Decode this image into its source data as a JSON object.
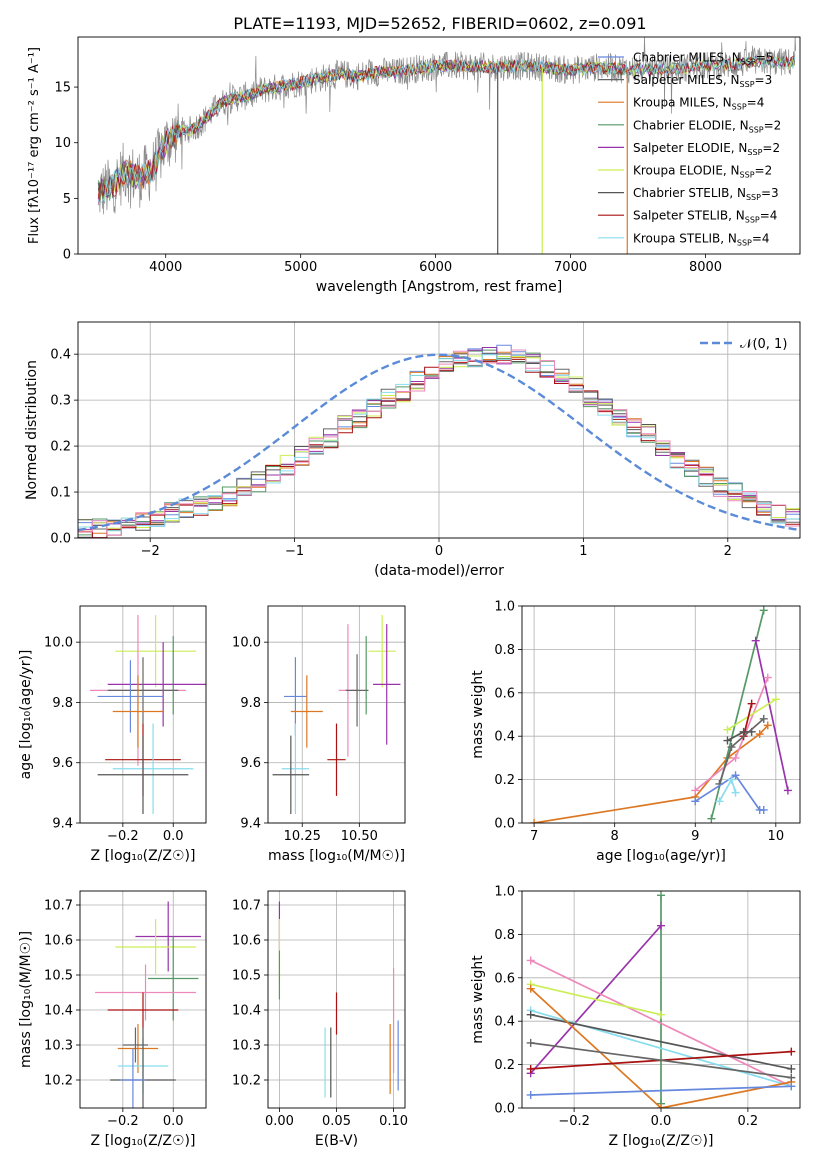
{
  "colors": {
    "Chabrier MILES": "#6688dd",
    "Salpeter MILES": "#666666",
    "Kroupa MILES": "#dd7722",
    "Chabrier ELODIE": "#559966",
    "Salpeter ELODIE": "#9933aa",
    "Kroupa ELODIE": "#ccee55",
    "Chabrier STELIB": "#555555",
    "Salpeter STELIB": "#aa1111",
    "Kroupa STELIB": "#88ddee",
    "pink": "#ee88bb",
    "gauss": "#5b8bd8",
    "grid": "#b0b0b0"
  },
  "chart_data": [
    {
      "id": "spectrum",
      "type": "line",
      "title": "PLATE=1193, MJD=52652, FIBERID=0602, z=0.091",
      "xlabel": "wavelength [Angstrom, rest frame]",
      "ylabel": "Flux [fλ10⁻¹⁷ erg cm⁻² s⁻¹ A⁻¹]",
      "xlim": [
        3350,
        8700
      ],
      "ylim": [
        0,
        19.5
      ],
      "xticks": [
        "4000",
        "5000",
        "6000",
        "7000",
        "8000"
      ],
      "yticks": [
        "0",
        "5",
        "10",
        "15"
      ],
      "grid": false,
      "legend": "top-right",
      "observed_anchor_points": {
        "x": [
          3500,
          3600,
          3700,
          3800,
          3900,
          4000,
          4100,
          4200,
          4300,
          4400,
          4500,
          4600,
          4700,
          4800,
          4900,
          5000,
          5100,
          5200,
          5300,
          5400,
          5500,
          5600,
          5700,
          5800,
          5900,
          6000,
          6200,
          6400,
          6600,
          6800,
          7000,
          7200,
          7400,
          7600,
          7800,
          8000,
          8200,
          8400,
          8670
        ],
        "y": [
          5.5,
          6.0,
          7.5,
          6.8,
          7.5,
          10.0,
          11.0,
          11.2,
          12.2,
          13.5,
          14.0,
          14.2,
          14.7,
          14.9,
          15.2,
          15.4,
          15.7,
          15.9,
          16.2,
          16.0,
          16.2,
          16.4,
          16.3,
          16.6,
          16.7,
          16.9,
          16.9,
          16.8,
          16.9,
          16.8,
          16.5,
          16.8,
          16.6,
          16.6,
          16.7,
          16.9,
          17.0,
          17.3,
          17.2
        ]
      },
      "series": [
        {
          "name": "Chabrier MILES, N_SSP=5",
          "label": "Chabrier MILES, N",
          "sub": "SSP",
          "n": "=5"
        },
        {
          "name": "Salpeter MILES, N_SSP=3",
          "label": "Salpeter MILES, N",
          "sub": "SSP",
          "n": "=3"
        },
        {
          "name": "Kroupa MILES, N_SSP=4",
          "label": "Kroupa MILES, N",
          "sub": "SSP",
          "n": "=4"
        },
        {
          "name": "Chabrier ELODIE, N_SSP=2",
          "label": "Chabrier ELODIE, N",
          "sub": "SSP",
          "n": "=2"
        },
        {
          "name": "Salpeter ELODIE, N_SSP=2",
          "label": "Salpeter ELODIE, N",
          "sub": "SSP",
          "n": "=2"
        },
        {
          "name": "Kroupa ELODIE, N_SSP=2",
          "label": "Kroupa ELODIE, N",
          "sub": "SSP",
          "n": "=2"
        },
        {
          "name": "Chabrier STELIB, N_SSP=3",
          "label": "Chabrier STELIB, N",
          "sub": "SSP",
          "n": "=3"
        },
        {
          "name": "Salpeter STELIB, N_SSP=4",
          "label": "Salpeter STELIB, N",
          "sub": "SSP",
          "n": "=4"
        },
        {
          "name": "Kroupa STELIB, N_SSP=4",
          "label": "Kroupa STELIB, N",
          "sub": "SSP",
          "n": "=4"
        }
      ],
      "spikes": [
        {
          "x": 6460,
          "model": "Chabrier STELIB"
        },
        {
          "x": 6790,
          "model": "Kroupa ELODIE"
        },
        {
          "x": 7420,
          "model": "Kroupa MILES"
        }
      ]
    },
    {
      "id": "residuals",
      "type": "step",
      "xlabel": "(data-model)/error",
      "ylabel": "Normed distribution",
      "xlim": [
        -2.5,
        2.5
      ],
      "ylim": [
        0,
        0.47
      ],
      "xticks": [
        "−2",
        "−1",
        "0",
        "1",
        "2"
      ],
      "yticks": [
        "0.0",
        "0.1",
        "0.2",
        "0.3",
        "0.4"
      ],
      "grid": true,
      "legend": "top-right",
      "legend_label": "𝒩(0, 1)",
      "bin_width": 0.1,
      "bin_start": -2.5,
      "base_histogram": [
        0.018,
        0.022,
        0.027,
        0.032,
        0.038,
        0.046,
        0.055,
        0.063,
        0.072,
        0.082,
        0.092,
        0.108,
        0.122,
        0.138,
        0.158,
        0.178,
        0.198,
        0.218,
        0.248,
        0.262,
        0.282,
        0.302,
        0.318,
        0.342,
        0.362,
        0.382,
        0.388,
        0.392,
        0.402,
        0.398,
        0.392,
        0.382,
        0.368,
        0.352,
        0.332,
        0.302,
        0.282,
        0.262,
        0.242,
        0.228,
        0.198,
        0.172,
        0.152,
        0.132,
        0.112,
        0.098,
        0.082,
        0.068,
        0.052,
        0.042
      ],
      "gaussian": {
        "mean": 0,
        "sigma": 1
      }
    },
    {
      "id": "age_vs_Z",
      "type": "errorbar",
      "xlabel": "Z [log₁₀(Z/Z☉)]",
      "ylabel": "age  [log₁₀(age/yr)]",
      "xlim": [
        -0.37,
        0.13
      ],
      "ylim": [
        9.4,
        10.12
      ],
      "xticks": [
        "−0.2",
        "0.0"
      ],
      "yticks": [
        "9.4",
        "9.6",
        "9.8",
        "10.0"
      ],
      "grid": true,
      "points": [
        {
          "model": "Kroupa ELODIE",
          "x": -0.07,
          "y": 9.97,
          "xerr": 0.16,
          "yerr": 0.12
        },
        {
          "model": "Chabrier ELODIE",
          "x": 0.0,
          "y": 9.89,
          "xerr": 0.0,
          "yerr": 0.13
        },
        {
          "model": "Salpeter ELODIE",
          "x": -0.04,
          "y": 9.86,
          "xerr": 0.22,
          "yerr": 0.14
        },
        {
          "model": "pink",
          "x": -0.14,
          "y": 9.84,
          "xerr": 0.19,
          "yerr": 0.25
        },
        {
          "model": "Salpeter MILES",
          "x": -0.12,
          "y": 9.84,
          "xerr": 0.14,
          "yerr": 0.11
        },
        {
          "model": "Chabrier MILES",
          "x": -0.17,
          "y": 9.82,
          "xerr": 0.13,
          "yerr": 0.12
        },
        {
          "model": "Kroupa MILES",
          "x": -0.14,
          "y": 9.77,
          "xerr": 0.1,
          "yerr": 0.12
        },
        {
          "model": "Salpeter STELIB",
          "x": -0.12,
          "y": 9.61,
          "xerr": 0.15,
          "yerr": 0.12
        },
        {
          "model": "Kroupa STELIB",
          "x": -0.08,
          "y": 9.58,
          "xerr": 0.16,
          "yerr": 0.15
        },
        {
          "model": "Chabrier STELIB",
          "x": -0.12,
          "y": 9.56,
          "xerr": 0.18,
          "yerr": 0.13
        }
      ]
    },
    {
      "id": "age_vs_mass",
      "type": "errorbar",
      "xlabel": "mass [log₁₀(M/M☉)]",
      "ylabel": "",
      "xlim": [
        10.1,
        10.7
      ],
      "ylim": [
        9.4,
        10.12
      ],
      "xticks": [
        "10.25",
        "10.50"
      ],
      "yticks": [
        "9.4",
        "9.6",
        "9.8",
        "10.0"
      ],
      "grid": true,
      "points": [
        {
          "model": "Kroupa ELODIE",
          "x": 10.6,
          "y": 9.97,
          "xerr": 0.06,
          "yerr": 0.12
        },
        {
          "model": "Chabrier ELODIE",
          "x": 10.53,
          "y": 9.89,
          "xerr": 0.0,
          "yerr": 0.13
        },
        {
          "model": "Salpeter ELODIE",
          "x": 10.62,
          "y": 9.86,
          "xerr": 0.06,
          "yerr": 0.2
        },
        {
          "model": "pink",
          "x": 10.45,
          "y": 9.84,
          "xerr": 0.04,
          "yerr": 0.22
        },
        {
          "model": "Salpeter MILES",
          "x": 10.49,
          "y": 9.84,
          "xerr": 0.05,
          "yerr": 0.12
        },
        {
          "model": "Chabrier MILES",
          "x": 10.22,
          "y": 9.82,
          "xerr": 0.05,
          "yerr": 0.13
        },
        {
          "model": "Kroupa MILES",
          "x": 10.27,
          "y": 9.77,
          "xerr": 0.07,
          "yerr": 0.12
        },
        {
          "model": "Salpeter STELIB",
          "x": 10.4,
          "y": 9.61,
          "xerr": 0.04,
          "yerr": 0.12
        },
        {
          "model": "Kroupa STELIB",
          "x": 10.22,
          "y": 9.58,
          "xerr": 0.06,
          "yerr": 0.15
        },
        {
          "model": "Chabrier STELIB",
          "x": 10.2,
          "y": 9.56,
          "xerr": 0.08,
          "yerr": 0.13
        }
      ]
    },
    {
      "id": "weight_vs_age",
      "type": "line",
      "xlabel": "age  [log₁₀(age/yr)]",
      "ylabel": "mass weight",
      "xlim": [
        6.85,
        10.3
      ],
      "ylim": [
        0,
        1
      ],
      "xticks": [
        "7",
        "8",
        "9",
        "10"
      ],
      "yticks": [
        "0.0",
        "0.2",
        "0.4",
        "0.6",
        "0.8",
        "1.0"
      ],
      "grid": true,
      "series": [
        {
          "model": "Kroupa MILES",
          "x": [
            7.0,
            9.0,
            9.4,
            9.8,
            9.9
          ],
          "y": [
            0.0,
            0.12,
            0.3,
            0.41,
            0.45
          ]
        },
        {
          "model": "Chabrier ELODIE",
          "x": [
            9.2,
            9.85
          ],
          "y": [
            0.02,
            0.98
          ]
        },
        {
          "model": "Salpeter ELODIE",
          "x": [
            9.75,
            10.15
          ],
          "y": [
            0.84,
            0.15
          ]
        },
        {
          "model": "pink",
          "x": [
            9.0,
            9.5,
            9.9
          ],
          "y": [
            0.15,
            0.3,
            0.67
          ]
        },
        {
          "model": "Kroupa ELODIE",
          "x": [
            9.4,
            10.0
          ],
          "y": [
            0.43,
            0.57
          ]
        },
        {
          "model": "Salpeter STELIB",
          "x": [
            9.6,
            9.7
          ],
          "y": [
            0.4,
            0.55
          ]
        },
        {
          "model": "Chabrier STELIB",
          "x": [
            9.4,
            9.6,
            9.7
          ],
          "y": [
            0.38,
            0.42,
            0.42
          ]
        },
        {
          "model": "Salpeter MILES",
          "x": [
            9.3,
            9.45,
            9.85
          ],
          "y": [
            0.18,
            0.35,
            0.48
          ]
        },
        {
          "model": "Chabrier MILES",
          "x": [
            9.0,
            9.5,
            9.8,
            9.85
          ],
          "y": [
            0.1,
            0.22,
            0.06,
            0.06
          ]
        },
        {
          "model": "Kroupa STELIB",
          "x": [
            9.3,
            9.45,
            9.5
          ],
          "y": [
            0.1,
            0.2,
            0.14
          ]
        }
      ]
    },
    {
      "id": "mass_vs_Z",
      "type": "errorbar",
      "xlabel": "Z [log₁₀(Z/Z☉)]",
      "ylabel": "mass [log₁₀(M/M☉)]",
      "xlim": [
        -0.37,
        0.13
      ],
      "ylim": [
        10.12,
        10.74
      ],
      "xticks": [
        "−0.2",
        "0.0"
      ],
      "yticks": [
        "10.2",
        "10.3",
        "10.4",
        "10.5",
        "10.6",
        "10.7"
      ],
      "grid": true,
      "points": [
        {
          "model": "Salpeter ELODIE",
          "x": -0.02,
          "y": 10.61,
          "xerr": 0.13,
          "yerr": 0.1
        },
        {
          "model": "Kroupa ELODIE",
          "x": -0.07,
          "y": 10.58,
          "xerr": 0.16,
          "yerr": 0.08
        },
        {
          "model": "Chabrier ELODIE",
          "x": 0.0,
          "y": 10.49,
          "xerr": 0.1,
          "yerr": 0.12
        },
        {
          "model": "pink",
          "x": -0.11,
          "y": 10.45,
          "xerr": 0.2,
          "yerr": 0.08
        },
        {
          "model": "Salpeter STELIB",
          "x": -0.12,
          "y": 10.4,
          "xerr": 0.14,
          "yerr": 0.05
        },
        {
          "model": "Kroupa MILES",
          "x": -0.14,
          "y": 10.29,
          "xerr": 0.08,
          "yerr": 0.07
        },
        {
          "model": "Salpeter MILES",
          "x": -0.15,
          "y": 10.3,
          "xerr": 0.05,
          "yerr": 0.05
        },
        {
          "model": "Kroupa STELIB",
          "x": -0.12,
          "y": 10.24,
          "xerr": 0.1,
          "yerr": 0.08
        },
        {
          "model": "Chabrier STELIB",
          "x": -0.12,
          "y": 10.2,
          "xerr": 0.13,
          "yerr": 0.15
        },
        {
          "model": "Chabrier MILES",
          "x": -0.16,
          "y": 10.2,
          "xerr": 0.05,
          "yerr": 0.09
        }
      ]
    },
    {
      "id": "mass_vs_EBV",
      "type": "errorbar",
      "xlabel": "E(B-V)",
      "ylabel": "",
      "xlim": [
        -0.01,
        0.11
      ],
      "ylim": [
        10.12,
        10.74
      ],
      "xticks": [
        "0.00",
        "0.05",
        "0.10"
      ],
      "yticks": [
        "10.2",
        "10.3",
        "10.4",
        "10.5",
        "10.6",
        "10.7"
      ],
      "grid": true,
      "points": [
        {
          "model": "Salpeter ELODIE",
          "x": 0.0,
          "y": 10.64,
          "xerr": 0.0,
          "yerr": 0.07
        },
        {
          "model": "Kroupa ELODIE",
          "x": 0.0,
          "y": 10.57,
          "xerr": 0.0,
          "yerr": 0.09
        },
        {
          "model": "Chabrier ELODIE",
          "x": 0.0,
          "y": 10.5,
          "xerr": 0.0,
          "yerr": 0.07
        },
        {
          "model": "pink",
          "x": 0.1,
          "y": 10.37,
          "xerr": 0.0,
          "yerr": 0.15
        },
        {
          "model": "Salpeter STELIB",
          "x": 0.05,
          "y": 10.39,
          "xerr": 0.0,
          "yerr": 0.06
        },
        {
          "model": "Chabrier STELIB",
          "x": 0.045,
          "y": 10.25,
          "xerr": 0.0,
          "yerr": 0.1
        },
        {
          "model": "Kroupa STELIB",
          "x": 0.04,
          "y": 10.25,
          "xerr": 0.0,
          "yerr": 0.1
        },
        {
          "model": "Kroupa MILES",
          "x": 0.097,
          "y": 10.26,
          "xerr": 0.0,
          "yerr": 0.1
        },
        {
          "model": "Chabrier MILES",
          "x": 0.104,
          "y": 10.27,
          "xerr": 0.0,
          "yerr": 0.1
        }
      ]
    },
    {
      "id": "weight_vs_Z",
      "type": "line",
      "xlabel": "Z [log₁₀(Z/Z☉)]",
      "ylabel": "mass weight",
      "xlim": [
        -0.32,
        0.32
      ],
      "ylim": [
        0,
        1
      ],
      "xticks": [
        "−0.2",
        "0.0",
        "0.2"
      ],
      "yticks": [
        "0.0",
        "0.2",
        "0.4",
        "0.6",
        "0.8",
        "1.0"
      ],
      "grid": true,
      "series": [
        {
          "model": "Chabrier ELODIE",
          "x": [
            0.0,
            0.0
          ],
          "y": [
            0.02,
            0.98
          ]
        },
        {
          "model": "Salpeter ELODIE",
          "x": [
            -0.3,
            0.0
          ],
          "y": [
            0.16,
            0.84
          ]
        },
        {
          "model": "pink",
          "x": [
            -0.3,
            0.3
          ],
          "y": [
            0.68,
            0.1
          ]
        },
        {
          "model": "Kroupa ELODIE",
          "x": [
            -0.3,
            0.0
          ],
          "y": [
            0.57,
            0.43
          ]
        },
        {
          "model": "Kroupa STELIB",
          "x": [
            -0.3,
            0.3
          ],
          "y": [
            0.45,
            0.1
          ]
        },
        {
          "model": "Chabrier STELIB",
          "x": [
            -0.3,
            0.3
          ],
          "y": [
            0.43,
            0.18
          ]
        },
        {
          "model": "Kroupa MILES",
          "x": [
            -0.3,
            0.0,
            0.3
          ],
          "y": [
            0.55,
            0.0,
            0.12
          ]
        },
        {
          "model": "Salpeter STELIB",
          "x": [
            -0.3,
            0.3
          ],
          "y": [
            0.18,
            0.26
          ]
        },
        {
          "model": "Chabrier MILES",
          "x": [
            -0.3,
            0.3
          ],
          "y": [
            0.06,
            0.1
          ]
        },
        {
          "model": "Salpeter MILES",
          "x": [
            -0.3,
            0.3
          ],
          "y": [
            0.3,
            0.14
          ]
        }
      ]
    }
  ]
}
